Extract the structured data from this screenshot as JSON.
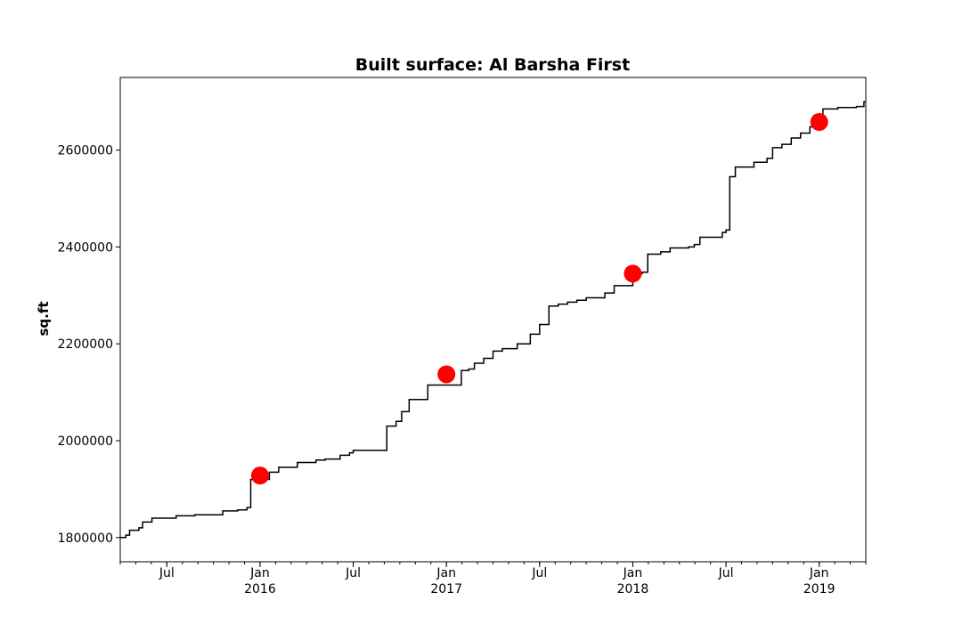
{
  "chart_data": {
    "type": "line",
    "title": "Built surface: Al Barsha First",
    "xlabel": "",
    "ylabel": "sq.ft",
    "xlim": [
      2015.25,
      2019.25
    ],
    "ylim": [
      1750000,
      2750000
    ],
    "grid": false,
    "y_ticks": [
      1800000,
      2000000,
      2200000,
      2400000,
      2600000
    ],
    "y_tick_labels": [
      "1800000",
      "2000000",
      "2200000",
      "2400000",
      "2600000"
    ],
    "x_ticks": [
      {
        "x": 2015.5,
        "label": "Jul",
        "year": ""
      },
      {
        "x": 2016.0,
        "label": "Jan",
        "year": "2016"
      },
      {
        "x": 2016.5,
        "label": "Jul",
        "year": ""
      },
      {
        "x": 2017.0,
        "label": "Jan",
        "year": "2017"
      },
      {
        "x": 2017.5,
        "label": "Jul",
        "year": ""
      },
      {
        "x": 2018.0,
        "label": "Jan",
        "year": "2018"
      },
      {
        "x": 2018.5,
        "label": "Jul",
        "year": ""
      },
      {
        "x": 2019.0,
        "label": "Jan",
        "year": "2019"
      }
    ],
    "series": [
      {
        "name": "built surface",
        "color": "#000000",
        "style": "step",
        "x": [
          2015.25,
          2015.28,
          2015.3,
          2015.35,
          2015.37,
          2015.42,
          2015.55,
          2015.65,
          2015.8,
          2015.88,
          2015.93,
          2015.95,
          2016.05,
          2016.1,
          2016.2,
          2016.3,
          2016.35,
          2016.43,
          2016.48,
          2016.5,
          2016.68,
          2016.73,
          2016.76,
          2016.8,
          2016.9,
          2017.08,
          2017.12,
          2017.15,
          2017.2,
          2017.25,
          2017.3,
          2017.38,
          2017.45,
          2017.5,
          2017.55,
          2017.6,
          2017.65,
          2017.7,
          2017.75,
          2017.85,
          2017.9,
          2018.0,
          2018.05,
          2018.08,
          2018.15,
          2018.2,
          2018.3,
          2018.33,
          2018.36,
          2018.48,
          2018.5,
          2018.52,
          2018.55,
          2018.65,
          2018.72,
          2018.75,
          2018.8,
          2018.85,
          2018.9,
          2018.95,
          2019.0,
          2019.02,
          2019.1,
          2019.2,
          2019.24
        ],
        "y": [
          1800000,
          1805000,
          1815000,
          1820000,
          1832000,
          1840000,
          1845000,
          1847000,
          1855000,
          1857000,
          1862000,
          1920000,
          1935000,
          1945000,
          1955000,
          1960000,
          1962000,
          1970000,
          1975000,
          1980000,
          2030000,
          2040000,
          2060000,
          2085000,
          2115000,
          2145000,
          2148000,
          2160000,
          2170000,
          2185000,
          2190000,
          2200000,
          2220000,
          2240000,
          2278000,
          2282000,
          2286000,
          2290000,
          2295000,
          2305000,
          2320000,
          2345000,
          2348000,
          2385000,
          2390000,
          2398000,
          2400000,
          2405000,
          2420000,
          2430000,
          2435000,
          2545000,
          2565000,
          2575000,
          2583000,
          2605000,
          2612000,
          2625000,
          2635000,
          2648000,
          2655000,
          2685000,
          2688000,
          2690000,
          2700000
        ]
      }
    ],
    "markers": {
      "color": "#ff0000",
      "points": [
        {
          "x": 2016.0,
          "y": 1928000
        },
        {
          "x": 2017.0,
          "y": 2137000
        },
        {
          "x": 2018.0,
          "y": 2345000
        },
        {
          "x": 2019.0,
          "y": 2658000
        }
      ]
    }
  }
}
